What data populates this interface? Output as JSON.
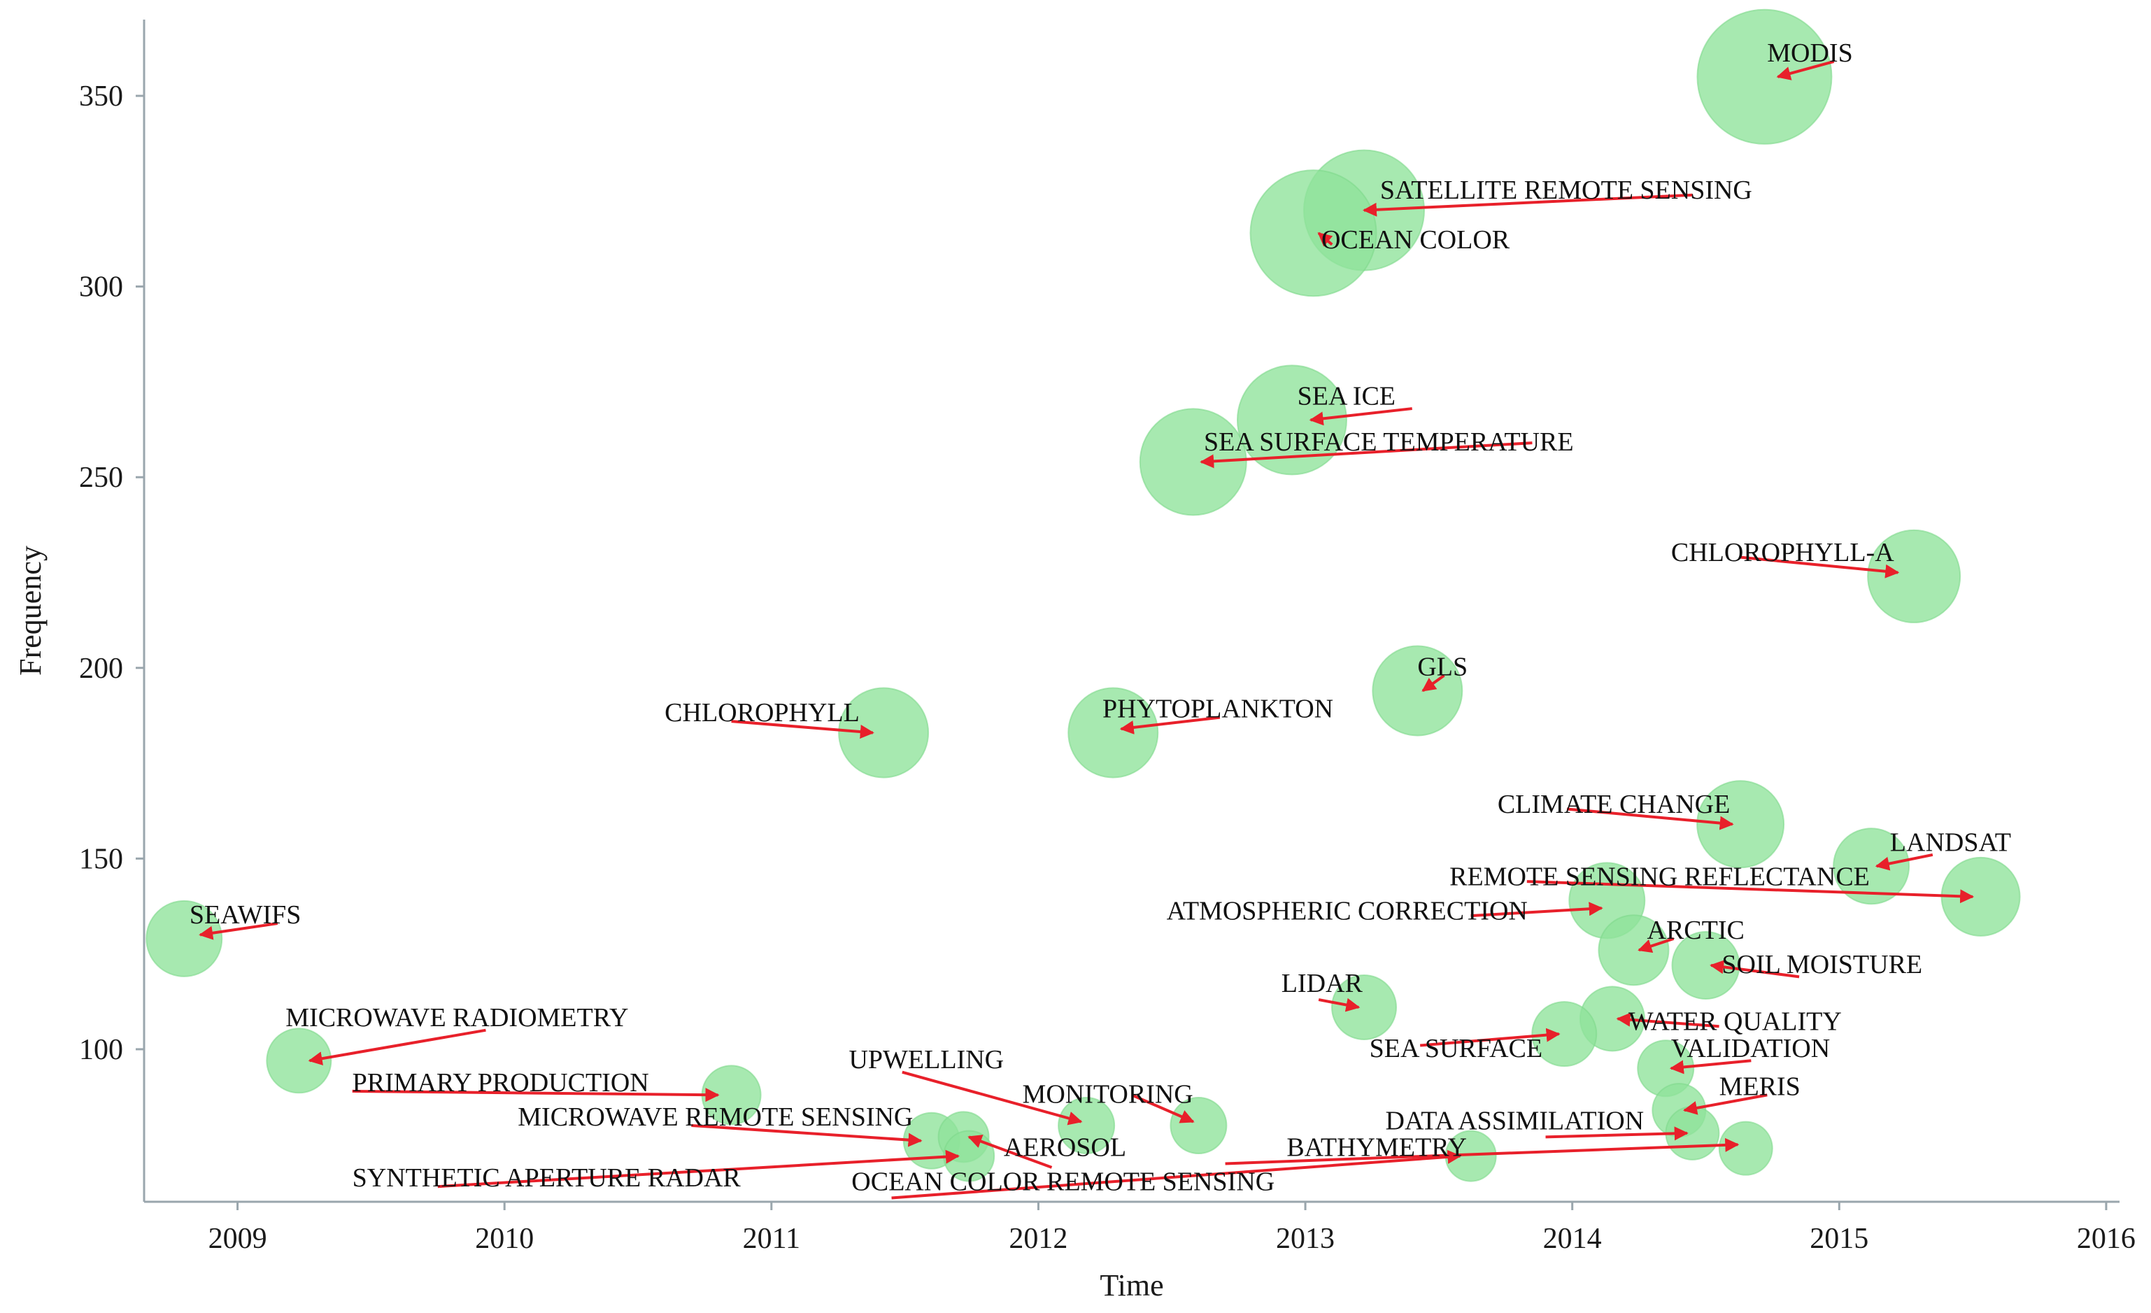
{
  "chart_data": {
    "type": "scatter",
    "xlabel": "Time",
    "ylabel": "Frequency",
    "xlim": [
      2008.65,
      2016.05
    ],
    "ylim": [
      60,
      370
    ],
    "xticks": [
      2009,
      2010,
      2011,
      2012,
      2013,
      2014,
      2015,
      2016
    ],
    "yticks": [
      100,
      150,
      200,
      250,
      300,
      350
    ],
    "grid": false,
    "legend": "none",
    "colors": {
      "bubble": "#8ee39a",
      "arrow": "#e8202a",
      "axis": "#9aa6ad"
    },
    "points": [
      {
        "label": "MODIS",
        "x": 2014.72,
        "y": 355,
        "size": 96
      },
      {
        "label": "SATELLITE REMOTE SENSING",
        "x": 2013.22,
        "y": 320,
        "size": 86
      },
      {
        "label": "OCEAN COLOR",
        "x": 2013.03,
        "y": 314,
        "size": 90
      },
      {
        "label": "SEA ICE",
        "x": 2012.95,
        "y": 265,
        "size": 78
      },
      {
        "label": "SEA SURFACE TEMPERATURE",
        "x": 2012.58,
        "y": 254,
        "size": 76
      },
      {
        "label": "CHLOROPHYLL-A",
        "x": 2015.28,
        "y": 224,
        "size": 66
      },
      {
        "label": "GLS",
        "x": 2013.42,
        "y": 194,
        "size": 64
      },
      {
        "label": "CHLOROPHYLL",
        "x": 2011.42,
        "y": 183,
        "size": 64
      },
      {
        "label": "PHYTOPLANKTON",
        "x": 2012.28,
        "y": 183,
        "size": 64
      },
      {
        "label": "CLIMATE CHANGE",
        "x": 2014.63,
        "y": 159,
        "size": 62
      },
      {
        "label": "LANDSAT",
        "x": 2015.12,
        "y": 148,
        "size": 54
      },
      {
        "label": "REMOTE SENSING REFLECTANCE",
        "x": 2015.53,
        "y": 140,
        "size": 56
      },
      {
        "label": "ATMOSPHERIC CORRECTION",
        "x": 2014.13,
        "y": 139,
        "size": 54
      },
      {
        "label": "SEAWIFS",
        "x": 2008.8,
        "y": 129,
        "size": 54
      },
      {
        "label": "ARCTIC",
        "x": 2014.23,
        "y": 126,
        "size": 50
      },
      {
        "label": "SOIL MOISTURE",
        "x": 2014.5,
        "y": 122,
        "size": 48
      },
      {
        "label": "LIDAR",
        "x": 2013.22,
        "y": 111,
        "size": 46
      },
      {
        "label": "WATER QUALITY",
        "x": 2014.15,
        "y": 108,
        "size": 46
      },
      {
        "label": "SEA SURFACE",
        "x": 2013.97,
        "y": 104,
        "size": 46
      },
      {
        "label": "MICROWAVE RADIOMETRY",
        "x": 2009.23,
        "y": 97,
        "size": 46
      },
      {
        "label": "VALIDATION",
        "x": 2014.35,
        "y": 95,
        "size": 40
      },
      {
        "label": "PRIMARY PRODUCTION",
        "x": 2010.85,
        "y": 88,
        "size": 42
      },
      {
        "label": "MERIS",
        "x": 2014.4,
        "y": 84,
        "size": 38
      },
      {
        "label": "UPWELLING",
        "x": 2012.18,
        "y": 80,
        "size": 40
      },
      {
        "label": "MONITORING",
        "x": 2012.6,
        "y": 80,
        "size": 40
      },
      {
        "label": "DATA ASSIMILATION",
        "x": 2014.45,
        "y": 78,
        "size": 38
      },
      {
        "label": "MICROWAVE REMOTE SENSING",
        "x": 2011.6,
        "y": 76,
        "size": 40
      },
      {
        "label": "AEROSOL",
        "x": 2011.72,
        "y": 77,
        "size": 36
      },
      {
        "label": "BATHYMETRY",
        "x": 2014.65,
        "y": 74,
        "size": 38
      },
      {
        "label": "SYNTHETIC APERTURE RADAR",
        "x": 2011.74,
        "y": 72,
        "size": 36
      },
      {
        "label": "OCEAN COLOR REMOTE SENSING",
        "x": 2013.62,
        "y": 72,
        "size": 36
      }
    ],
    "arrows": [
      {
        "from": [
          2014.98,
          359
        ],
        "to": [
          2014.77,
          355
        ]
      },
      {
        "from": [
          2014.45,
          324
        ],
        "to": [
          2013.22,
          320
        ]
      },
      {
        "from": [
          2013.1,
          311
        ],
        "to": [
          2013.05,
          314
        ]
      },
      {
        "from": [
          2013.4,
          268
        ],
        "to": [
          2013.02,
          265
        ]
      },
      {
        "from": [
          2013.85,
          259
        ],
        "to": [
          2012.61,
          254
        ]
      },
      {
        "from": [
          2014.63,
          229
        ],
        "to": [
          2015.22,
          225
        ]
      },
      {
        "from": [
          2013.52,
          198
        ],
        "to": [
          2013.44,
          194
        ]
      },
      {
        "from": [
          2010.85,
          186
        ],
        "to": [
          2011.38,
          183
        ]
      },
      {
        "from": [
          2012.68,
          187
        ],
        "to": [
          2012.31,
          184
        ]
      },
      {
        "from": [
          2013.98,
          163
        ],
        "to": [
          2014.6,
          159
        ]
      },
      {
        "from": [
          2015.35,
          151
        ],
        "to": [
          2015.14,
          148
        ]
      },
      {
        "from": [
          2013.83,
          144
        ],
        "to": [
          2015.5,
          140
        ]
      },
      {
        "from": [
          2013.62,
          135
        ],
        "to": [
          2014.11,
          137
        ]
      },
      {
        "from": [
          2009.15,
          133
        ],
        "to": [
          2008.86,
          130
        ]
      },
      {
        "from": [
          2014.38,
          129
        ],
        "to": [
          2014.25,
          126
        ]
      },
      {
        "from": [
          2014.85,
          119
        ],
        "to": [
          2014.52,
          122
        ]
      },
      {
        "from": [
          2013.05,
          113
        ],
        "to": [
          2013.2,
          111
        ]
      },
      {
        "from": [
          2014.55,
          106
        ],
        "to": [
          2014.17,
          108
        ]
      },
      {
        "from": [
          2013.43,
          101
        ],
        "to": [
          2013.95,
          104
        ]
      },
      {
        "from": [
          2009.93,
          105
        ],
        "to": [
          2009.27,
          97
        ]
      },
      {
        "from": [
          2014.67,
          97
        ],
        "to": [
          2014.37,
          95
        ]
      },
      {
        "from": [
          2009.43,
          89
        ],
        "to": [
          2010.8,
          88
        ]
      },
      {
        "from": [
          2014.73,
          88
        ],
        "to": [
          2014.42,
          84
        ]
      },
      {
        "from": [
          2011.49,
          94
        ],
        "to": [
          2012.16,
          81
        ]
      },
      {
        "from": [
          2012.35,
          88
        ],
        "to": [
          2012.58,
          81
        ]
      },
      {
        "from": [
          2013.9,
          77
        ],
        "to": [
          2014.43,
          78
        ]
      },
      {
        "from": [
          2010.7,
          80
        ],
        "to": [
          2011.56,
          76
        ]
      },
      {
        "from": [
          2012.05,
          69
        ],
        "to": [
          2011.74,
          77
        ]
      },
      {
        "from": [
          2012.7,
          70
        ],
        "to": [
          2014.62,
          75
        ]
      },
      {
        "from": [
          2009.75,
          64
        ],
        "to": [
          2011.7,
          72
        ]
      },
      {
        "from": [
          2011.45,
          61
        ],
        "to": [
          2013.58,
          72
        ]
      }
    ],
    "labels": [
      {
        "text": "MODIS",
        "x": 2014.73,
        "y": 359
      },
      {
        "text": "SATELLITE REMOTE SENSING",
        "x": 2013.28,
        "y": 323
      },
      {
        "text": "OCEAN COLOR",
        "x": 2013.06,
        "y": 310
      },
      {
        "text": "SEA ICE",
        "x": 2012.97,
        "y": 269
      },
      {
        "text": "SEA SURFACE TEMPERATURE",
        "x": 2012.62,
        "y": 257
      },
      {
        "text": "CHLOROPHYLL-A",
        "x": 2014.37,
        "y": 228
      },
      {
        "text": "GLS",
        "x": 2013.42,
        "y": 198
      },
      {
        "text": "CHLOROPHYLL",
        "x": 2010.6,
        "y": 186
      },
      {
        "text": "PHYTOPLANKTON",
        "x": 2012.24,
        "y": 187
      },
      {
        "text": "CLIMATE CHANGE",
        "x": 2013.72,
        "y": 162
      },
      {
        "text": "LANDSAT",
        "x": 2015.19,
        "y": 152
      },
      {
        "text": "REMOTE SENSING REFLECTANCE",
        "x": 2013.54,
        "y": 143
      },
      {
        "text": "ATMOSPHERIC CORRECTION",
        "x": 2012.48,
        "y": 134
      },
      {
        "text": "SEAWIFS",
        "x": 2008.82,
        "y": 133
      },
      {
        "text": "ARCTIC",
        "x": 2014.28,
        "y": 129
      },
      {
        "text": "SOIL MOISTURE",
        "x": 2014.56,
        "y": 120
      },
      {
        "text": "LIDAR",
        "x": 2012.91,
        "y": 115
      },
      {
        "text": "WATER QUALITY",
        "x": 2014.21,
        "y": 105
      },
      {
        "text": "SEA SURFACE",
        "x": 2013.24,
        "y": 98
      },
      {
        "text": "MICROWAVE RADIOMETRY",
        "x": 2009.18,
        "y": 106
      },
      {
        "text": "VALIDATION",
        "x": 2014.37,
        "y": 98
      },
      {
        "text": "PRIMARY PRODUCTION",
        "x": 2009.43,
        "y": 89
      },
      {
        "text": "MERIS",
        "x": 2014.55,
        "y": 88
      },
      {
        "text": "UPWELLING",
        "x": 2011.29,
        "y": 95
      },
      {
        "text": "MONITORING",
        "x": 2011.94,
        "y": 86
      },
      {
        "text": "DATA ASSIMILATION",
        "x": 2013.3,
        "y": 79
      },
      {
        "text": "MICROWAVE REMOTE SENSING",
        "x": 2010.05,
        "y": 80
      },
      {
        "text": "AEROSOL",
        "x": 2011.87,
        "y": 72
      },
      {
        "text": "BATHYMETRY",
        "x": 2012.93,
        "y": 72
      },
      {
        "text": "SYNTHETIC APERTURE RADAR",
        "x": 2009.43,
        "y": 64
      },
      {
        "text": "OCEAN COLOR REMOTE SENSING",
        "x": 2011.3,
        "y": 63
      }
    ]
  }
}
